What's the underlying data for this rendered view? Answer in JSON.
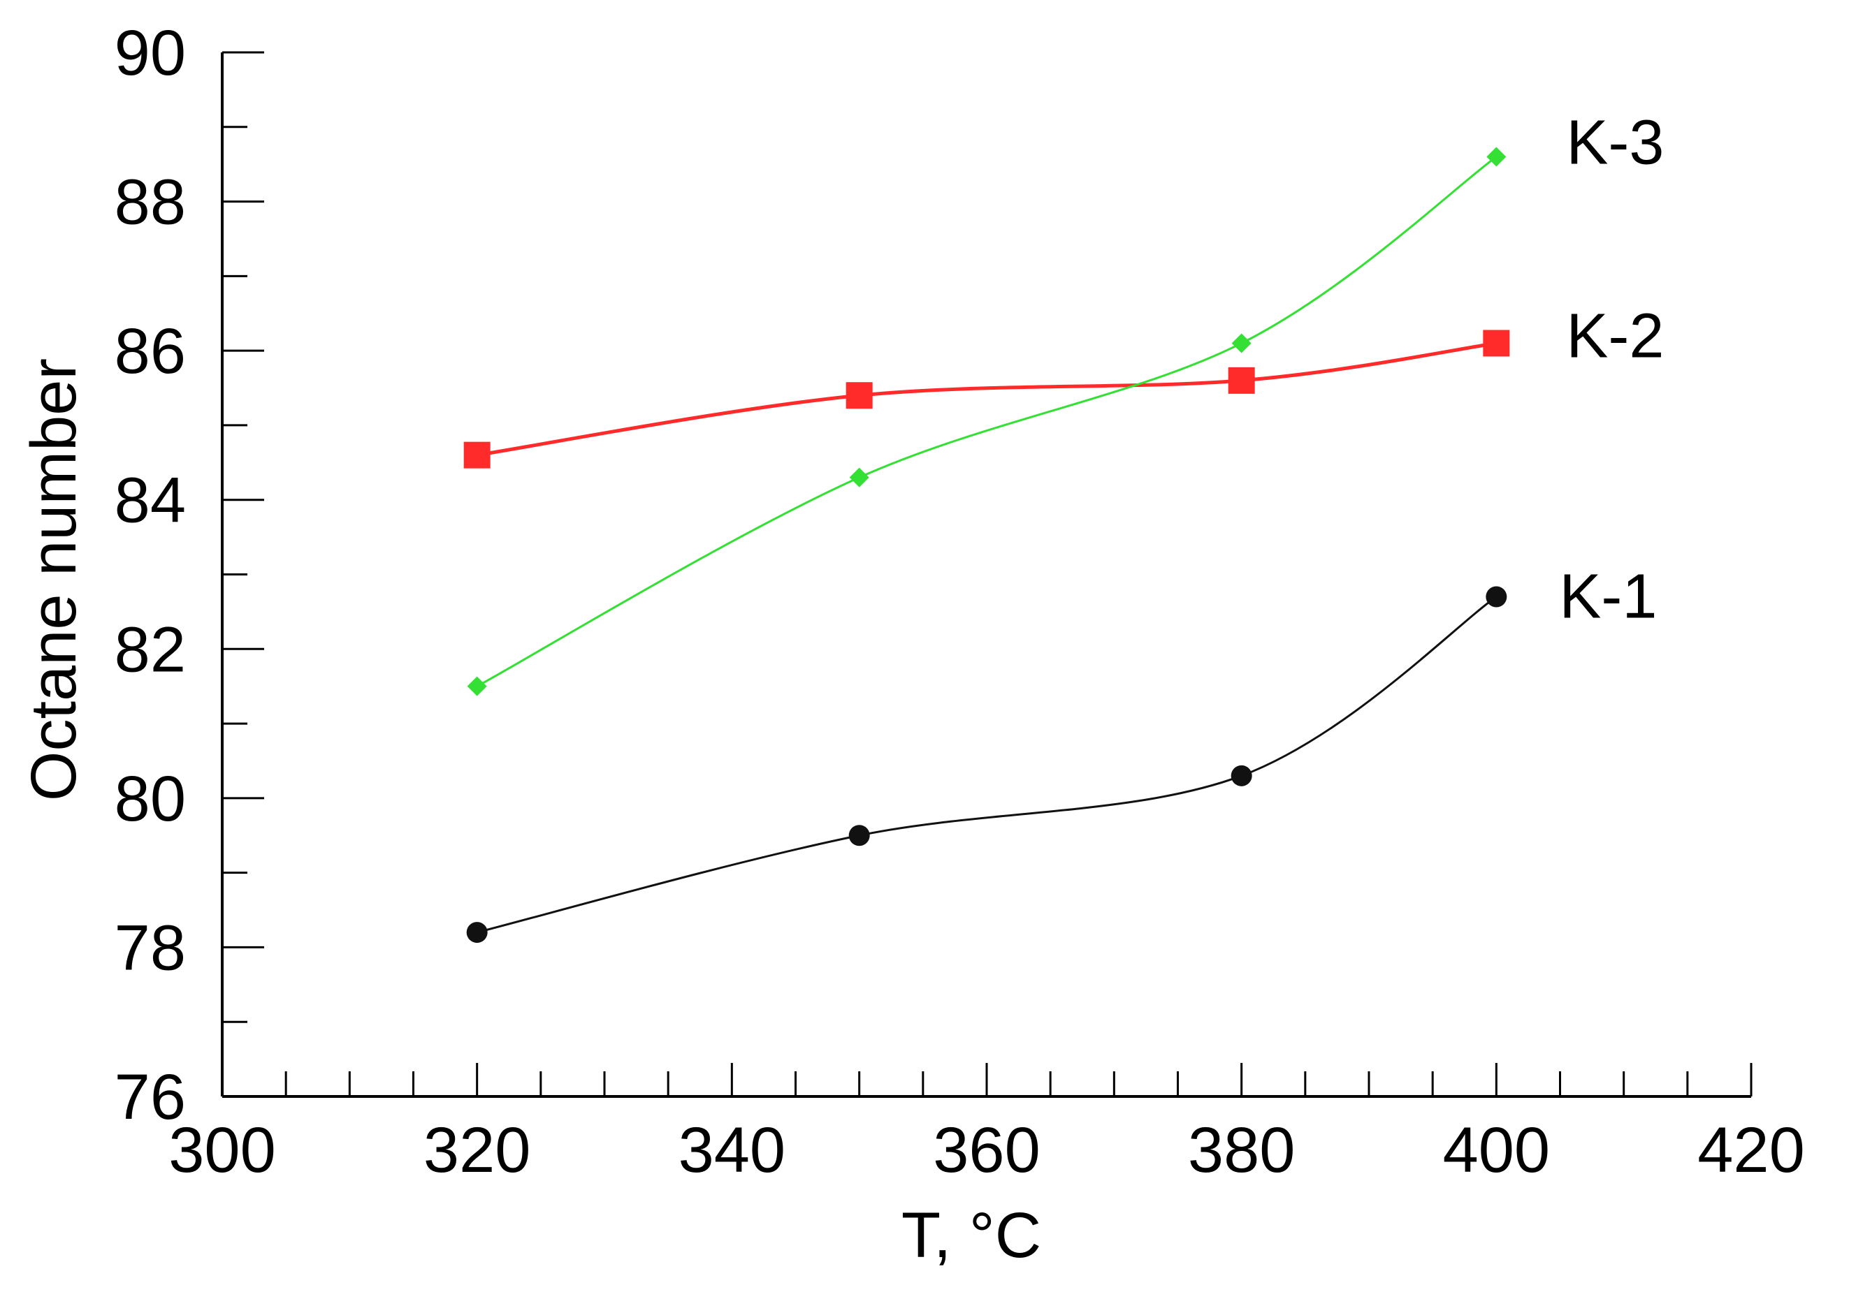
{
  "chart_data": {
    "type": "line",
    "title": "",
    "xlabel": "T, °C",
    "ylabel": "Octane number",
    "xlim": [
      300,
      420
    ],
    "ylim": [
      76,
      90
    ],
    "x_ticks": [
      300,
      320,
      340,
      360,
      380,
      400,
      420
    ],
    "x_tick_labels": [
      "300",
      "320",
      "340",
      "360",
      "380",
      "400",
      "420"
    ],
    "y_ticks": [
      76,
      78,
      80,
      82,
      84,
      86,
      88,
      90
    ],
    "y_tick_labels": [
      "76",
      "78",
      "80",
      "82",
      "84",
      "86",
      "88",
      "90"
    ],
    "grid": false,
    "legend": "inline labels at line ends",
    "x": [
      320,
      350,
      380,
      400
    ],
    "series": [
      {
        "name": "K-1",
        "values": [
          78.2,
          79.5,
          80.3,
          82.7
        ],
        "color": "#111111",
        "marker": "circle"
      },
      {
        "name": "K-2",
        "values": [
          84.6,
          85.4,
          85.6,
          86.1
        ],
        "color": "#ff2a2a",
        "marker": "square"
      },
      {
        "name": "K-3",
        "values": [
          81.5,
          84.3,
          86.1,
          88.6
        ],
        "color": "#33e033",
        "marker": "diamond"
      }
    ]
  }
}
